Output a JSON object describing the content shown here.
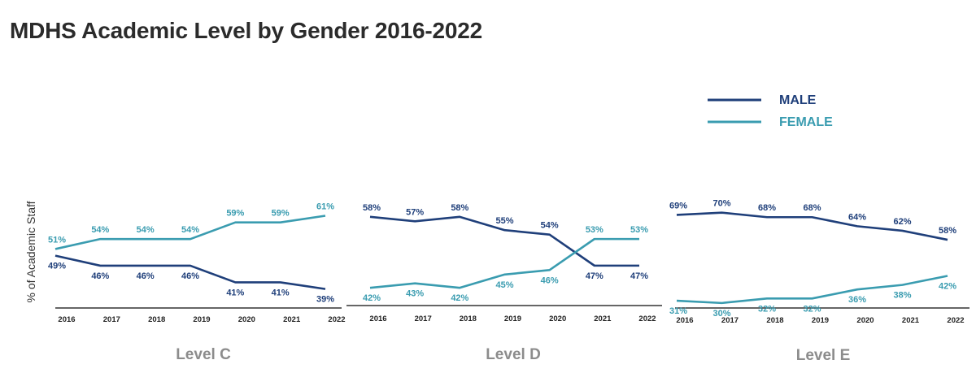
{
  "title": "MDHS Academic Level by Gender 2016-2022",
  "colors": {
    "male": "#1f3f7a",
    "female": "#3a9cb0",
    "axis": "#333333",
    "panel_title": "#8c8c8c"
  },
  "legend": {
    "male": "MALE",
    "female": "FEMALE"
  },
  "chart_data": {
    "type": "line",
    "title": "MDHS Academic Level by Gender 2016-2022",
    "ylabel": "% of Academic Staff",
    "x": [
      "2016",
      "2017",
      "2018",
      "2019",
      "2020",
      "2021",
      "2022"
    ],
    "panels": [
      {
        "name": "Level C",
        "ylim": [
          35,
          66
        ],
        "series": [
          {
            "name": "MALE",
            "values": [
              49,
              46,
              46,
              46,
              41,
              41,
              39
            ]
          },
          {
            "name": "FEMALE",
            "values": [
              51,
              54,
              54,
              54,
              59,
              59,
              61
            ]
          }
        ]
      },
      {
        "name": "Level D",
        "ylim": [
          38,
          62
        ],
        "series": [
          {
            "name": "MALE",
            "values": [
              58,
              57,
              58,
              55,
              54,
              47,
              47
            ]
          },
          {
            "name": "FEMALE",
            "values": [
              42,
              43,
              42,
              45,
              46,
              53,
              53
            ]
          }
        ]
      },
      {
        "name": "Level E",
        "ylim": [
          26,
          76
        ],
        "series": [
          {
            "name": "MALE",
            "values": [
              69,
              70,
              68,
              68,
              64,
              62,
              58
            ]
          },
          {
            "name": "FEMALE",
            "values": [
              31,
              30,
              32,
              32,
              36,
              38,
              42
            ]
          }
        ]
      }
    ]
  }
}
